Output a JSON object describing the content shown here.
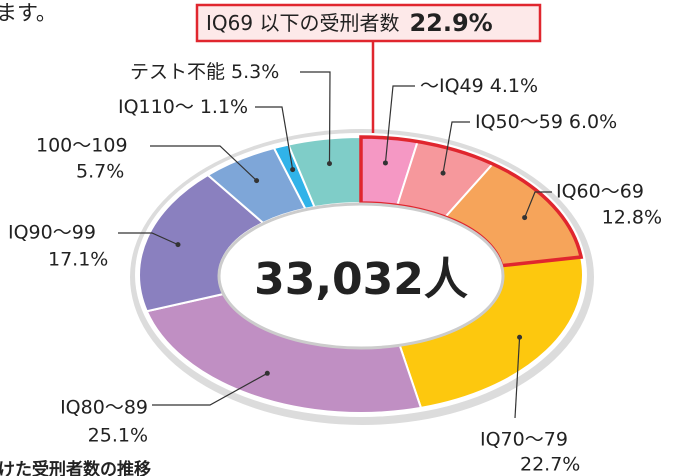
{
  "chart_data": {
    "type": "donut",
    "center_label": "33,032人",
    "highlight": {
      "text": "IQ69 以下の受刑者数",
      "value_label": "22.9%"
    },
    "fragments": [
      "ます。",
      "けた受刑者数の推移"
    ],
    "categories": [
      "〜IQ49",
      "IQ50〜59",
      "IQ60〜69",
      "IQ70〜79",
      "IQ80〜89",
      "IQ90〜99",
      "100〜109",
      "IQ110〜",
      "テスト不能"
    ],
    "values": [
      4.1,
      6.0,
      12.8,
      22.7,
      25.1,
      17.1,
      5.7,
      1.1,
      5.3
    ],
    "value_labels": [
      "4.1%",
      "6.0%",
      "12.8%",
      "22.7%",
      "25.1%",
      "17.1%",
      "5.7%",
      "1.1%",
      "5.3%"
    ],
    "colors": [
      "#f598c4",
      "#f6989c",
      "#f6a45a",
      "#fdc80e",
      "#c08fc3",
      "#8a80bf",
      "#7ea6d8",
      "#30b3e9",
      "#7fcdc8"
    ]
  }
}
